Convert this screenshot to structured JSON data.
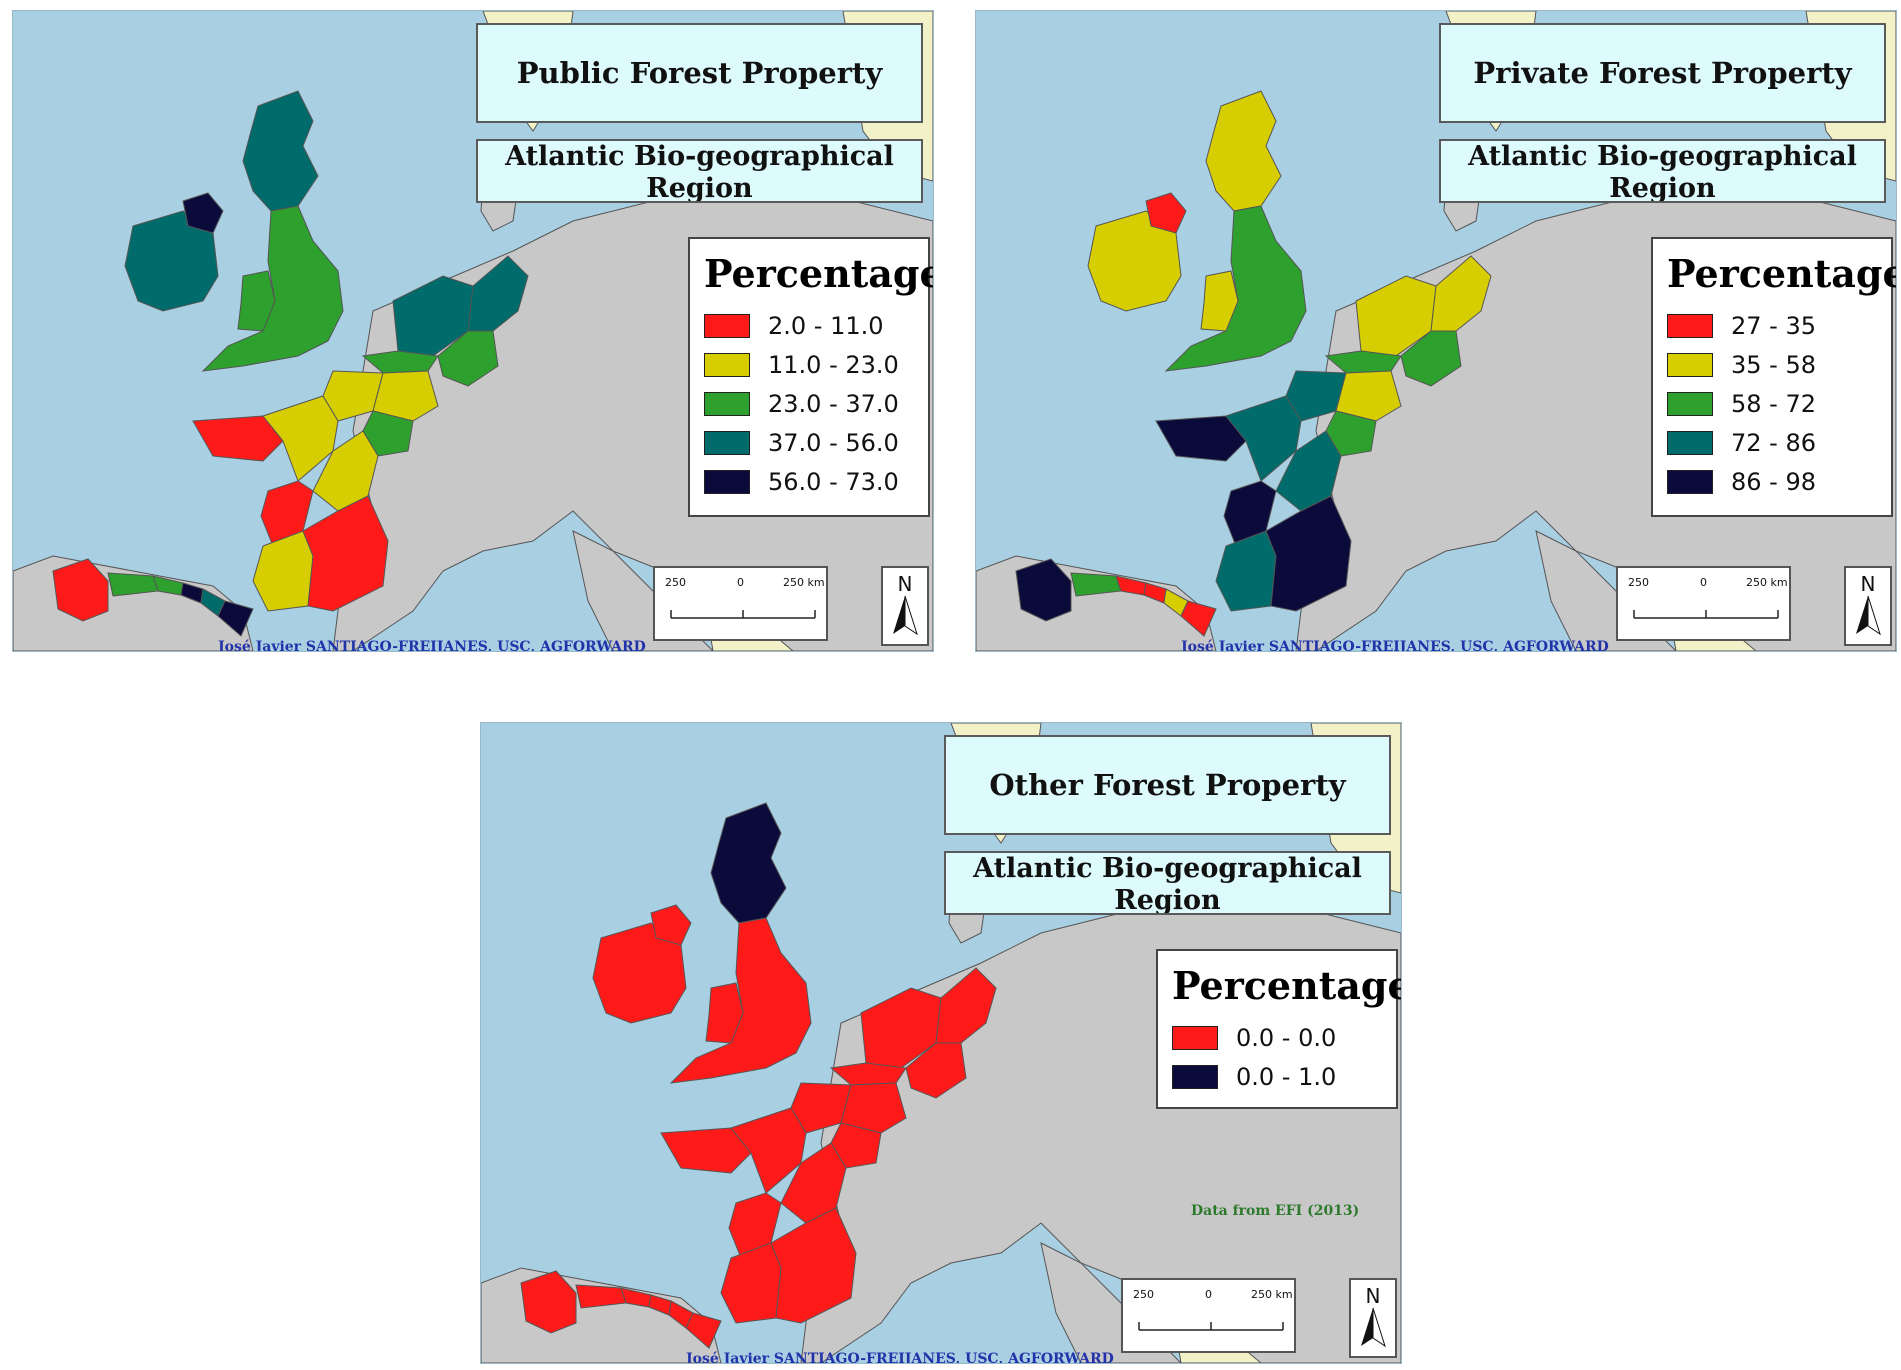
{
  "colors": {
    "sea": "#a9cfe2",
    "land": "#c8c8c8",
    "nonstudy_land": "#f2f1c8",
    "border": "#555555",
    "class_red": "#ff1a1a",
    "class_yellow": "#d6ce00",
    "class_green": "#2da02d",
    "class_teal": "#006b6b",
    "class_navy": "#0b0b3b"
  },
  "maps": [
    {
      "title": "Public Forest Property",
      "subtitle": "Atlantic  Bio-geographical Region",
      "legend_title": "Percentage",
      "legend": [
        {
          "label": "2.0 - 11.0",
          "color": "#ff1a1a"
        },
        {
          "label": "11.0 - 23.0",
          "color": "#d6ce00"
        },
        {
          "label": "23.0 - 37.0",
          "color": "#2da02d"
        },
        {
          "label": "37.0 - 56.0",
          "color": "#006b6b"
        },
        {
          "label": "56.0 - 73.0",
          "color": "#0b0b3b"
        }
      ],
      "region_colors": {
        "ireland": "#006b6b",
        "n_ireland": "#0b0b3b",
        "scotland": "#006b6b",
        "england": "#2da02d",
        "wales": "#2da02d",
        "netherlands": "#006b6b",
        "germany_nw": "#006b6b",
        "germany_w": "#2da02d",
        "belgium": "#2da02d",
        "france_n": "#d6ce00",
        "france_ne": "#2da02d",
        "france_ne2": "#d6ce00",
        "brittany": "#ff1a1a",
        "france_w": "#d6ce00",
        "france_c": "#d6ce00",
        "france_cw": "#ff1a1a",
        "france_sw": "#d6ce00",
        "france_s": "#ff1a1a",
        "galicia": "#ff1a1a",
        "asturias": "#2da02d",
        "cantabria": "#2da02d",
        "basque": "#0b0b3b",
        "navarra": "#006b6b",
        "pyrenees": "#0b0b3b"
      },
      "scale": {
        "left": "250",
        "mid": "0",
        "right": "250 km"
      },
      "north": "N",
      "credit": "José Javier SANTIAGO-FREIJANES, USC, AGFORWARD"
    },
    {
      "title": "Private Forest Property",
      "subtitle": "Atlantic  Bio-geographical Region",
      "legend_title": "Percentage",
      "legend": [
        {
          "label": "27 - 35",
          "color": "#ff1a1a"
        },
        {
          "label": "35 - 58",
          "color": "#d6ce00"
        },
        {
          "label": "58 - 72",
          "color": "#2da02d"
        },
        {
          "label": "72 - 86",
          "color": "#006b6b"
        },
        {
          "label": "86 - 98",
          "color": "#0b0b3b"
        }
      ],
      "region_colors": {
        "ireland": "#d6ce00",
        "n_ireland": "#ff1a1a",
        "scotland": "#d6ce00",
        "england": "#2da02d",
        "wales": "#d6ce00",
        "netherlands": "#d6ce00",
        "germany_nw": "#d6ce00",
        "germany_w": "#2da02d",
        "belgium": "#2da02d",
        "france_n": "#006b6b",
        "france_ne": "#2da02d",
        "france_ne2": "#d6ce00",
        "brittany": "#0b0b3b",
        "france_w": "#006b6b",
        "france_c": "#006b6b",
        "france_cw": "#0b0b3b",
        "france_sw": "#006b6b",
        "france_s": "#0b0b3b",
        "galicia": "#0b0b3b",
        "asturias": "#2da02d",
        "cantabria": "#ff1a1a",
        "basque": "#ff1a1a",
        "navarra": "#d6ce00",
        "pyrenees": "#ff1a1a"
      },
      "scale": {
        "left": "250",
        "mid": "0",
        "right": "250 km"
      },
      "north": "N",
      "credit": "José Javier SANTIAGO-FREIJANES, USC, AGFORWARD"
    },
    {
      "title": "Other Forest Property",
      "subtitle": "Atlantic  Bio-geographical Region",
      "legend_title": "Percentage",
      "legend": [
        {
          "label": "0.0 - 0.0",
          "color": "#ff1a1a"
        },
        {
          "label": "0.0 - 1.0",
          "color": "#0b0b3b"
        }
      ],
      "region_colors": {
        "ireland": "#ff1a1a",
        "n_ireland": "#ff1a1a",
        "scotland": "#0b0b3b",
        "england": "#ff1a1a",
        "wales": "#ff1a1a",
        "netherlands": "#ff1a1a",
        "germany_nw": "#ff1a1a",
        "germany_w": "#ff1a1a",
        "belgium": "#ff1a1a",
        "france_n": "#ff1a1a",
        "france_ne": "#ff1a1a",
        "france_ne2": "#ff1a1a",
        "brittany": "#ff1a1a",
        "france_w": "#ff1a1a",
        "france_c": "#ff1a1a",
        "france_cw": "#ff1a1a",
        "france_sw": "#ff1a1a",
        "france_s": "#ff1a1a",
        "galicia": "#ff1a1a",
        "asturias": "#ff1a1a",
        "cantabria": "#ff1a1a",
        "basque": "#ff1a1a",
        "navarra": "#ff1a1a",
        "pyrenees": "#ff1a1a"
      },
      "scale": {
        "left": "250",
        "mid": "0",
        "right": "250 km"
      },
      "north": "N",
      "credit": "José Javier SANTIAGO-FREIJANES, USC, AGFORWARD",
      "data_source": "Data from EFI (2013)"
    }
  ]
}
